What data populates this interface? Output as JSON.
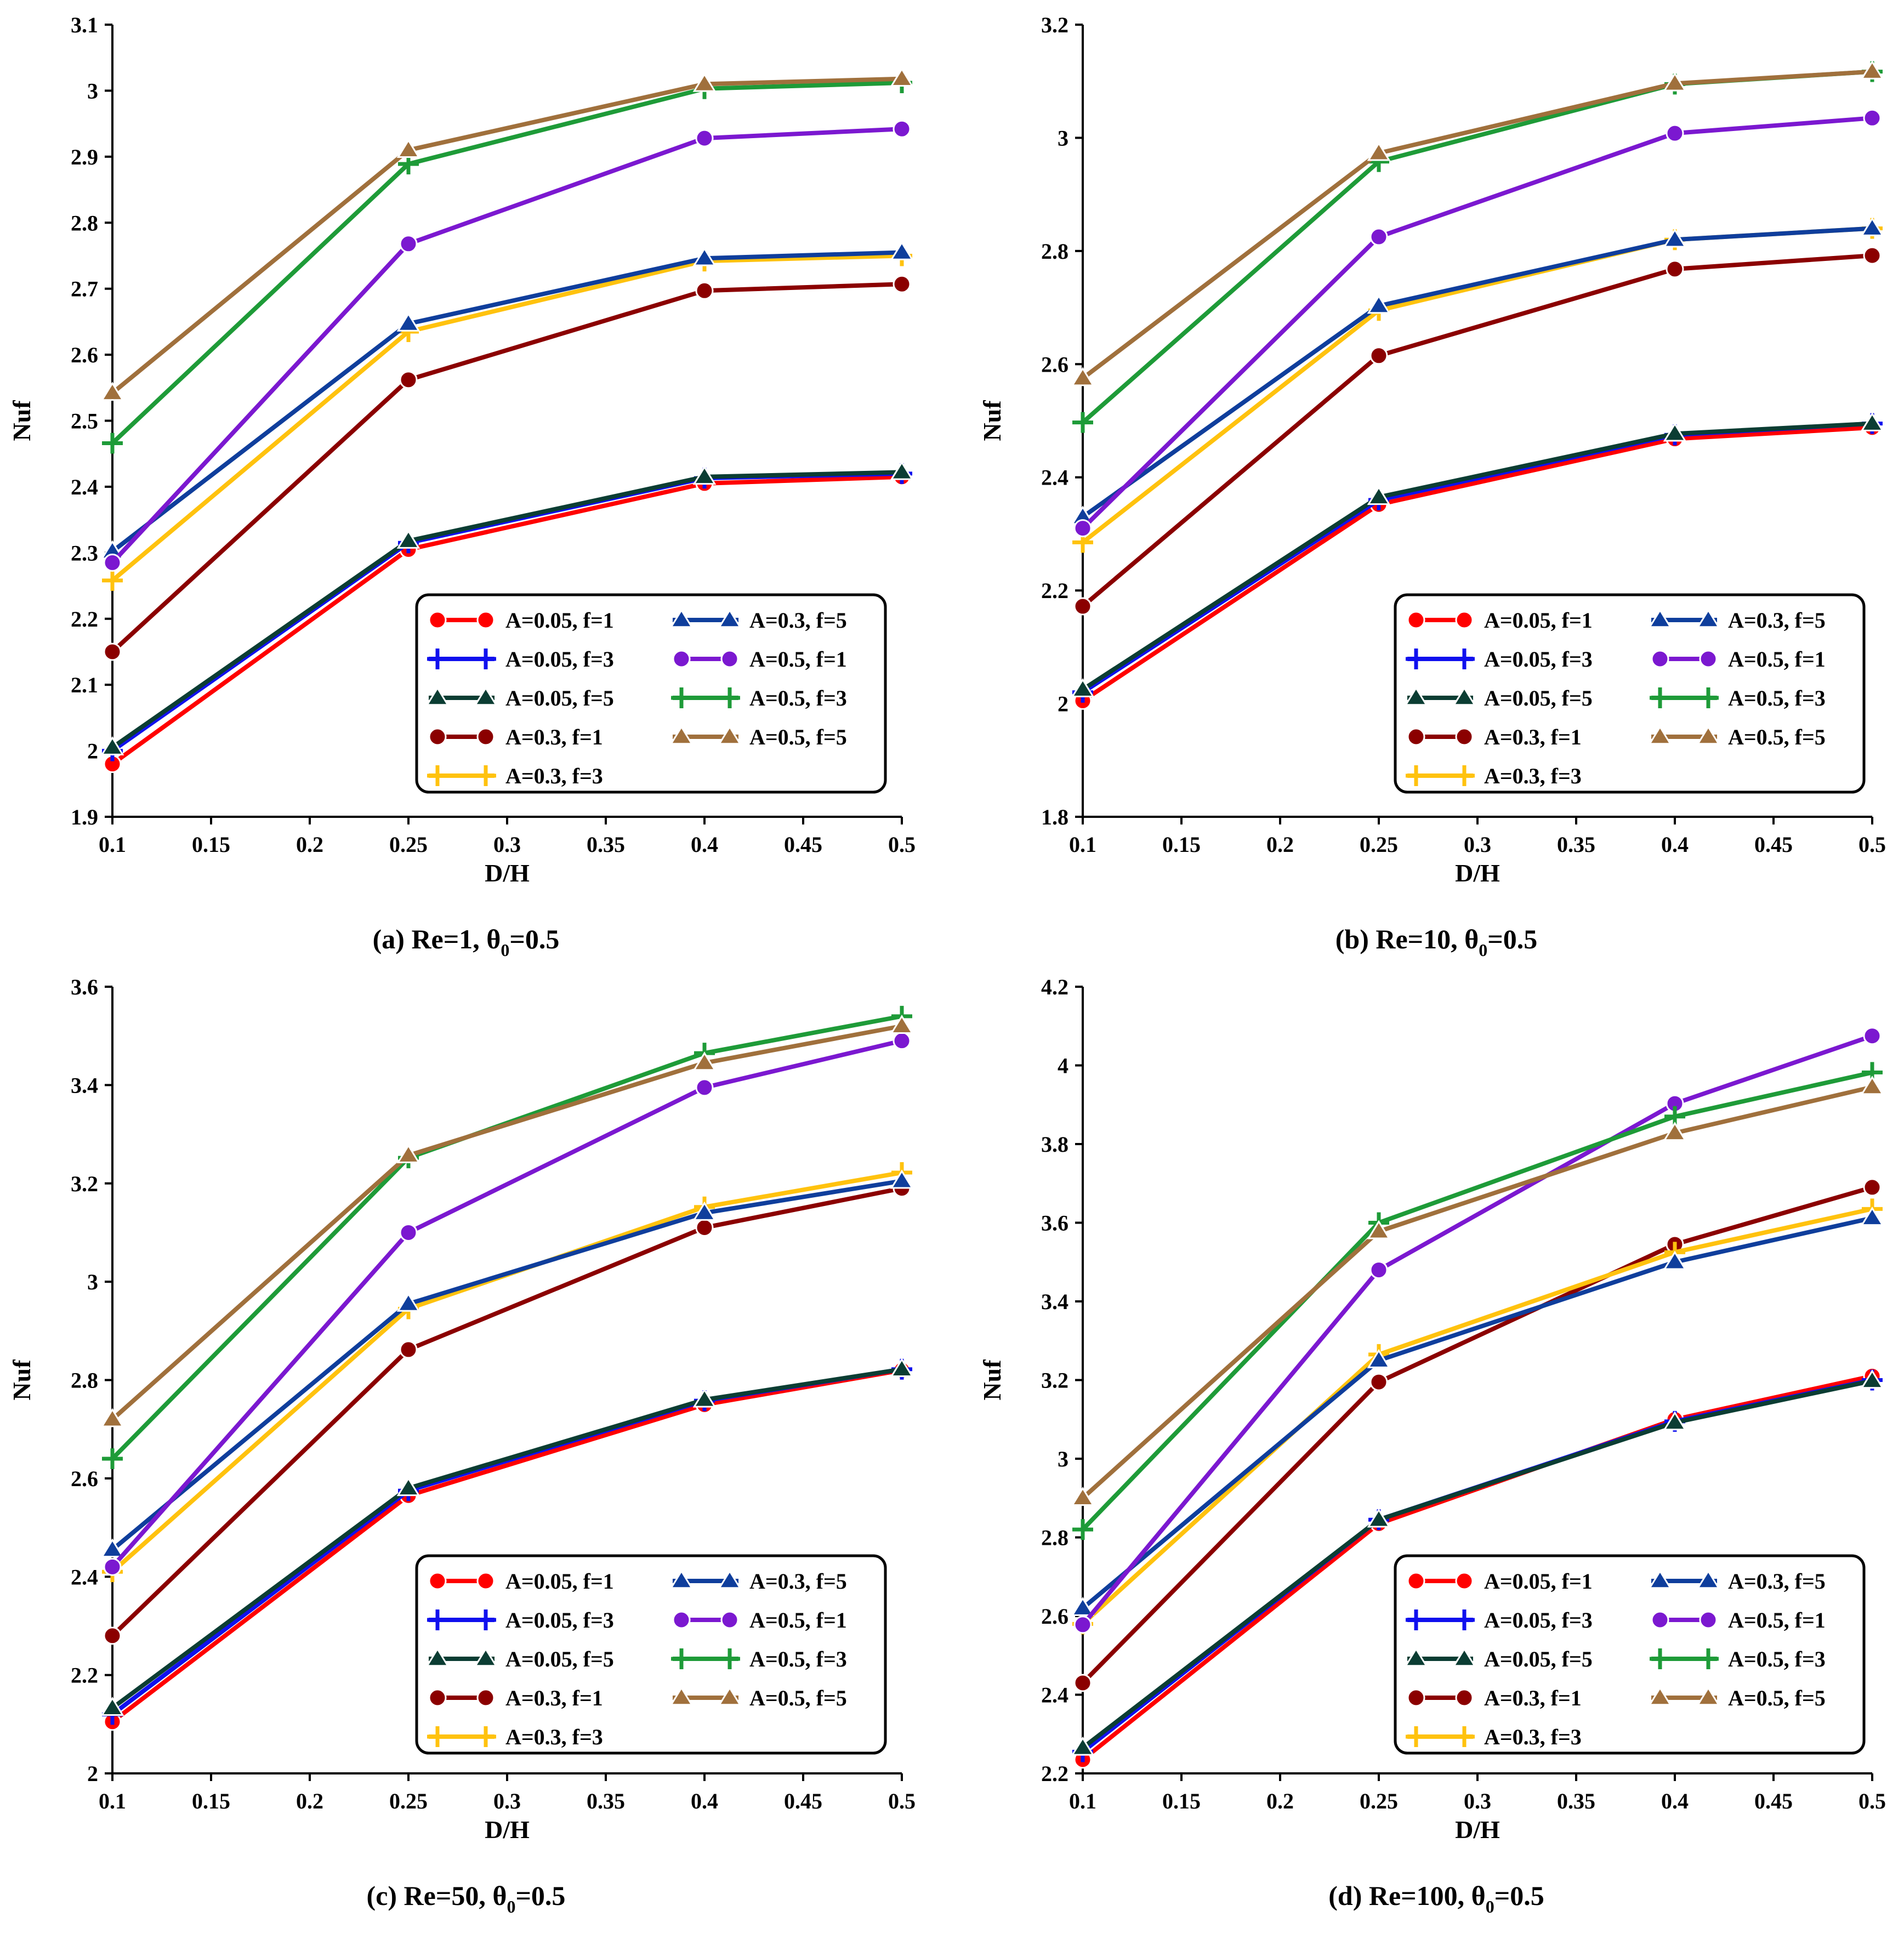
{
  "series_styles": [
    {
      "label": "A=0.05, f=1",
      "color": "#FF0000",
      "marker": "circle"
    },
    {
      "label": "A=0.05, f=3",
      "color": "#1010EE",
      "marker": "plus"
    },
    {
      "label": "A=0.05, f=5",
      "color": "#0B3D33",
      "marker": "triangle"
    },
    {
      "label": "A=0.3, f=1",
      "color": "#8B0000",
      "marker": "circle"
    },
    {
      "label": "A=0.3, f=3",
      "color": "#FFC20E",
      "marker": "plus"
    },
    {
      "label": "A=0.3, f=5",
      "color": "#0F3E9C",
      "marker": "triangle"
    },
    {
      "label": "A=0.5, f=1",
      "color": "#7B18D0",
      "marker": "circle"
    },
    {
      "label": "A=0.5, f=3",
      "color": "#1E9B38",
      "marker": "plus"
    },
    {
      "label": "A=0.5, f=5",
      "color": "#A0703C",
      "marker": "triangle"
    }
  ],
  "chart_data": [
    {
      "type": "line",
      "caption": {
        "prefix": "(a) Re=1, θ",
        "sub": "0",
        "suffix": "=0.5"
      },
      "xlabel": "D/H",
      "ylabel": "Nuf",
      "xlim": [
        0.1,
        0.5
      ],
      "ylim": [
        1.9,
        3.1
      ],
      "x_ticks": [
        "0.1",
        "0.15",
        "0.2",
        "0.25",
        "0.3",
        "0.35",
        "0.4",
        "0.45",
        "0.5"
      ],
      "y_ticks": [
        "1.9",
        "2",
        "2.1",
        "2.2",
        "2.3",
        "2.4",
        "2.5",
        "2.6",
        "2.7",
        "2.8",
        "2.9",
        "3",
        "3.1"
      ],
      "x": [
        0.1,
        0.25,
        0.4,
        0.5
      ],
      "series": [
        {
          "name": "A=0.05, f=1",
          "values": [
            1.98,
            2.305,
            2.405,
            2.415
          ]
        },
        {
          "name": "A=0.05, f=3",
          "values": [
            2.0,
            2.315,
            2.413,
            2.42
          ]
        },
        {
          "name": "A=0.05, f=5",
          "values": [
            2.005,
            2.318,
            2.415,
            2.422
          ]
        },
        {
          "name": "A=0.3, f=1",
          "values": [
            2.15,
            2.562,
            2.697,
            2.707
          ]
        },
        {
          "name": "A=0.3, f=3",
          "values": [
            2.258,
            2.635,
            2.742,
            2.75
          ]
        },
        {
          "name": "A=0.3, f=5",
          "values": [
            2.302,
            2.647,
            2.746,
            2.755
          ]
        },
        {
          "name": "A=0.5, f=1",
          "values": [
            2.285,
            2.768,
            2.928,
            2.942
          ]
        },
        {
          "name": "A=0.5, f=3",
          "values": [
            2.466,
            2.889,
            3.003,
            3.012
          ]
        },
        {
          "name": "A=0.5, f=5",
          "values": [
            2.542,
            2.91,
            3.01,
            3.018
          ]
        }
      ]
    },
    {
      "type": "line",
      "caption": {
        "prefix": "(b) Re=10, θ",
        "sub": "0",
        "suffix": "=0.5"
      },
      "xlabel": "D/H",
      "ylabel": "Nuf",
      "xlim": [
        0.1,
        0.5
      ],
      "ylim": [
        1.8,
        3.2
      ],
      "x_ticks": [
        "0.1",
        "0.15",
        "0.2",
        "0.25",
        "0.3",
        "0.35",
        "0.4",
        "0.45",
        "0.5"
      ],
      "y_ticks": [
        "1.8",
        "2",
        "2.2",
        "2.4",
        "2.6",
        "2.8",
        "3",
        "3.2"
      ],
      "x": [
        0.1,
        0.25,
        0.4,
        0.5
      ],
      "series": [
        {
          "name": "A=0.05, f=1",
          "values": [
            2.005,
            2.352,
            2.468,
            2.488
          ]
        },
        {
          "name": "A=0.05, f=3",
          "values": [
            2.02,
            2.36,
            2.475,
            2.495
          ]
        },
        {
          "name": "A=0.05, f=5",
          "values": [
            2.025,
            2.365,
            2.477,
            2.495
          ]
        },
        {
          "name": "A=0.3, f=1",
          "values": [
            2.172,
            2.615,
            2.768,
            2.792
          ]
        },
        {
          "name": "A=0.3, f=3",
          "values": [
            2.285,
            2.695,
            2.82,
            2.84
          ]
        },
        {
          "name": "A=0.3, f=5",
          "values": [
            2.33,
            2.703,
            2.82,
            2.84
          ]
        },
        {
          "name": "A=0.5, f=1",
          "values": [
            2.31,
            2.825,
            3.008,
            3.035
          ]
        },
        {
          "name": "A=0.5, f=3",
          "values": [
            2.497,
            2.958,
            3.095,
            3.117
          ]
        },
        {
          "name": "A=0.5, f=5",
          "values": [
            2.575,
            2.973,
            3.096,
            3.117
          ]
        }
      ]
    },
    {
      "type": "line",
      "caption": {
        "prefix": "(c) Re=50, θ",
        "sub": "0",
        "suffix": "=0.5"
      },
      "xlabel": "D/H",
      "ylabel": "Nuf",
      "xlim": [
        0.1,
        0.5
      ],
      "ylim": [
        2.0,
        3.6
      ],
      "x_ticks": [
        "0.1",
        "0.15",
        "0.2",
        "0.25",
        "0.3",
        "0.35",
        "0.4",
        "0.45",
        "0.5"
      ],
      "y_ticks": [
        "2",
        "2.2",
        "2.4",
        "2.6",
        "2.8",
        "3",
        "3.2",
        "3.4",
        "3.6"
      ],
      "x": [
        0.1,
        0.25,
        0.4,
        0.5
      ],
      "series": [
        {
          "name": "A=0.05, f=1",
          "values": [
            2.105,
            2.565,
            2.75,
            2.82
          ]
        },
        {
          "name": "A=0.05, f=3",
          "values": [
            2.12,
            2.575,
            2.758,
            2.822
          ]
        },
        {
          "name": "A=0.05, f=5",
          "values": [
            2.133,
            2.58,
            2.76,
            2.822
          ]
        },
        {
          "name": "A=0.3, f=1",
          "values": [
            2.28,
            2.862,
            3.11,
            3.19
          ]
        },
        {
          "name": "A=0.3, f=3",
          "values": [
            2.41,
            2.945,
            3.152,
            3.222
          ]
        },
        {
          "name": "A=0.3, f=5",
          "values": [
            2.455,
            2.955,
            3.14,
            3.205
          ]
        },
        {
          "name": "A=0.5, f=1",
          "values": [
            2.42,
            3.1,
            3.395,
            3.49
          ]
        },
        {
          "name": "A=0.5, f=3",
          "values": [
            2.64,
            3.252,
            3.465,
            3.54
          ]
        },
        {
          "name": "A=0.5, f=5",
          "values": [
            2.72,
            3.257,
            3.445,
            3.52
          ]
        }
      ]
    },
    {
      "type": "line",
      "caption": {
        "prefix": "(d) Re=100, θ",
        "sub": "0",
        "suffix": "=0.5"
      },
      "xlabel": "D/H",
      "ylabel": "Nuf",
      "xlim": [
        0.1,
        0.5
      ],
      "ylim": [
        2.2,
        4.2
      ],
      "x_ticks": [
        "0.1",
        "0.15",
        "0.2",
        "0.25",
        "0.3",
        "0.35",
        "0.4",
        "0.45",
        "0.5"
      ],
      "y_ticks": [
        "2.2",
        "2.4",
        "2.6",
        "2.8",
        "3",
        "3.2",
        "3.4",
        "3.6",
        "3.8",
        "4",
        "4.2"
      ],
      "x": [
        0.1,
        0.25,
        0.4,
        0.5
      ],
      "series": [
        {
          "name": "A=0.05, f=1",
          "values": [
            2.235,
            2.835,
            3.1,
            3.21
          ]
        },
        {
          "name": "A=0.05, f=3",
          "values": [
            2.255,
            2.845,
            3.095,
            3.2
          ]
        },
        {
          "name": "A=0.05, f=5",
          "values": [
            2.265,
            2.845,
            3.092,
            3.198
          ]
        },
        {
          "name": "A=0.3, f=1",
          "values": [
            2.43,
            3.195,
            3.545,
            3.69
          ]
        },
        {
          "name": "A=0.3, f=3",
          "values": [
            2.58,
            3.265,
            3.525,
            3.635
          ]
        },
        {
          "name": "A=0.3, f=5",
          "values": [
            2.62,
            3.25,
            3.5,
            3.612
          ]
        },
        {
          "name": "A=0.5, f=1",
          "values": [
            2.578,
            3.48,
            3.903,
            4.075
          ]
        },
        {
          "name": "A=0.5, f=3",
          "values": [
            2.82,
            3.6,
            3.87,
            3.982
          ]
        },
        {
          "name": "A=0.5, f=5",
          "values": [
            2.9,
            3.578,
            3.828,
            3.945
          ]
        }
      ]
    }
  ]
}
